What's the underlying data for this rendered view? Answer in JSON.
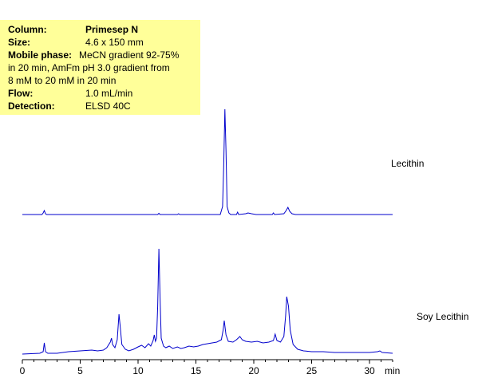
{
  "conditions": {
    "column_key": "Column:",
    "column_val": "Primesep N",
    "size_key": "Size:",
    "size_val": "4.6 x 150 mm",
    "mobile_key": "Mobile phase:",
    "mobile_val_1": "MeCN gradient 92-75%",
    "mobile_line2": "in 20  min, AmFm pH 3.0 gradient from",
    "mobile_line3": "8 mM to 20 mM in 20 min",
    "flow_key": "Flow:",
    "flow_val": "1.0 mL/min",
    "detection_key": "Detection:",
    "detection_val": "ELSD 40C"
  },
  "colors": {
    "trace": "#0000cc",
    "axis": "#000000",
    "panel": "#ffff99"
  },
  "chart_data": {
    "type": "line",
    "xlabel": "min",
    "xlim": [
      0,
      32
    ],
    "xticks": [
      "0",
      "5",
      "10",
      "15",
      "20",
      "25",
      "30"
    ],
    "series": [
      {
        "name": "Lecithin",
        "baseline": 0,
        "points": [
          [
            0,
            0
          ],
          [
            1.7,
            0
          ],
          [
            1.8,
            2
          ],
          [
            1.9,
            5
          ],
          [
            2.0,
            1
          ],
          [
            2.1,
            0
          ],
          [
            11.7,
            0
          ],
          [
            11.8,
            1.5
          ],
          [
            11.9,
            0
          ],
          [
            13.4,
            0
          ],
          [
            13.5,
            1
          ],
          [
            13.6,
            0
          ],
          [
            17.1,
            0
          ],
          [
            17.3,
            10
          ],
          [
            17.4,
            60
          ],
          [
            17.5,
            132
          ],
          [
            17.6,
            80
          ],
          [
            17.7,
            10
          ],
          [
            17.85,
            2
          ],
          [
            18.0,
            0
          ],
          [
            18.5,
            0
          ],
          [
            18.6,
            3
          ],
          [
            18.7,
            0
          ],
          [
            19.3,
            1
          ],
          [
            19.5,
            2
          ],
          [
            19.8,
            1
          ],
          [
            20.2,
            0
          ],
          [
            21.6,
            0
          ],
          [
            21.7,
            2
          ],
          [
            21.8,
            0
          ],
          [
            22.6,
            1
          ],
          [
            22.8,
            5
          ],
          [
            22.95,
            9
          ],
          [
            23.1,
            4
          ],
          [
            23.3,
            1
          ],
          [
            23.6,
            0
          ],
          [
            32,
            0
          ]
        ]
      },
      {
        "name": "Soy Lecithin",
        "baseline": 0,
        "points": [
          [
            0,
            0
          ],
          [
            1.5,
            1
          ],
          [
            1.8,
            3
          ],
          [
            1.9,
            14
          ],
          [
            2.0,
            3
          ],
          [
            2.2,
            1
          ],
          [
            3,
            1
          ],
          [
            4,
            3
          ],
          [
            5,
            4
          ],
          [
            6,
            5
          ],
          [
            6.5,
            4
          ],
          [
            7.0,
            5
          ],
          [
            7.3,
            8
          ],
          [
            7.6,
            15
          ],
          [
            7.7,
            20
          ],
          [
            7.8,
            12
          ],
          [
            8.0,
            8
          ],
          [
            8.2,
            18
          ],
          [
            8.35,
            50
          ],
          [
            8.45,
            36
          ],
          [
            8.6,
            12
          ],
          [
            8.9,
            6
          ],
          [
            9.2,
            4
          ],
          [
            9.6,
            6
          ],
          [
            10.0,
            9
          ],
          [
            10.3,
            11
          ],
          [
            10.6,
            8
          ],
          [
            10.9,
            13
          ],
          [
            11.1,
            10
          ],
          [
            11.3,
            17
          ],
          [
            11.4,
            24
          ],
          [
            11.5,
            16
          ],
          [
            11.6,
            20
          ],
          [
            11.7,
            60
          ],
          [
            11.8,
            132
          ],
          [
            11.9,
            70
          ],
          [
            12.0,
            20
          ],
          [
            12.2,
            10
          ],
          [
            12.4,
            8
          ],
          [
            12.7,
            10
          ],
          [
            13.0,
            7
          ],
          [
            13.4,
            9
          ],
          [
            13.7,
            7
          ],
          [
            14.0,
            8
          ],
          [
            14.4,
            10
          ],
          [
            14.8,
            9
          ],
          [
            15.2,
            10
          ],
          [
            15.6,
            12
          ],
          [
            16.0,
            13
          ],
          [
            16.4,
            14
          ],
          [
            16.8,
            15
          ],
          [
            17.2,
            18
          ],
          [
            17.35,
            30
          ],
          [
            17.45,
            42
          ],
          [
            17.6,
            24
          ],
          [
            17.8,
            16
          ],
          [
            18.2,
            15
          ],
          [
            18.5,
            18
          ],
          [
            18.8,
            22
          ],
          [
            19.0,
            18
          ],
          [
            19.3,
            16
          ],
          [
            19.8,
            15
          ],
          [
            20.3,
            16
          ],
          [
            20.8,
            14
          ],
          [
            21.3,
            15
          ],
          [
            21.7,
            17
          ],
          [
            21.85,
            25
          ],
          [
            22.0,
            17
          ],
          [
            22.3,
            15
          ],
          [
            22.6,
            22
          ],
          [
            22.75,
            48
          ],
          [
            22.85,
            72
          ],
          [
            23.0,
            60
          ],
          [
            23.15,
            30
          ],
          [
            23.4,
            12
          ],
          [
            23.8,
            6
          ],
          [
            24.3,
            4
          ],
          [
            25,
            3
          ],
          [
            26,
            3
          ],
          [
            27,
            2
          ],
          [
            28,
            2
          ],
          [
            29,
            2
          ],
          [
            30,
            2
          ],
          [
            30.7,
            3
          ],
          [
            30.9,
            4
          ],
          [
            31.1,
            2
          ],
          [
            32,
            1
          ]
        ]
      }
    ]
  }
}
